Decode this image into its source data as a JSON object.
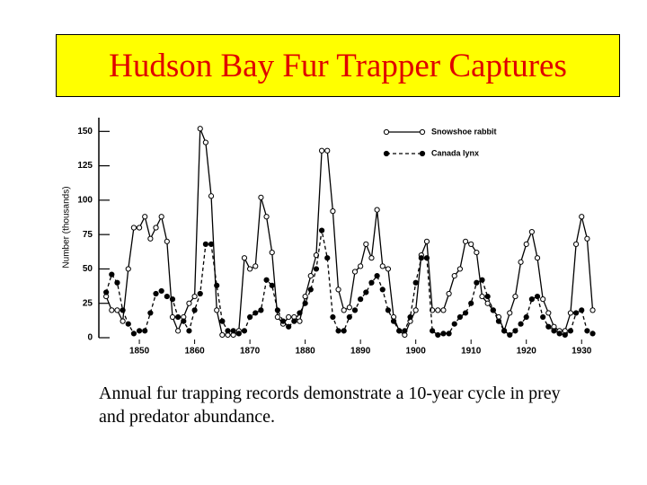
{
  "chart_data": {
    "type": "line",
    "title": "Hudson Bay Fur Trapper Captures",
    "caption": "Annual fur trapping records demonstrate a 10-year cycle in prey and predator abundance.",
    "y_label": "Number (thousands)",
    "x": [
      1844,
      1845,
      1846,
      1847,
      1848,
      1849,
      1850,
      1851,
      1852,
      1853,
      1854,
      1855,
      1856,
      1857,
      1858,
      1859,
      1860,
      1861,
      1862,
      1863,
      1864,
      1865,
      1866,
      1867,
      1868,
      1869,
      1870,
      1871,
      1872,
      1873,
      1874,
      1875,
      1876,
      1877,
      1878,
      1879,
      1880,
      1881,
      1882,
      1883,
      1884,
      1885,
      1886,
      1887,
      1888,
      1889,
      1890,
      1891,
      1892,
      1893,
      1894,
      1895,
      1896,
      1897,
      1898,
      1899,
      1900,
      1901,
      1902,
      1903,
      1904,
      1905,
      1906,
      1907,
      1908,
      1909,
      1910,
      1911,
      1912,
      1913,
      1914,
      1915,
      1916,
      1917,
      1918,
      1919,
      1920,
      1921,
      1922,
      1923,
      1924,
      1925,
      1926,
      1927,
      1928,
      1929,
      1930,
      1931,
      1932
    ],
    "series": [
      {
        "name": "Snowshoe rabbit",
        "color": "#000000",
        "line_style": "solid",
        "marker": "open",
        "values": [
          30,
          20,
          20,
          12,
          50,
          80,
          80,
          88,
          72,
          80,
          88,
          70,
          15,
          5,
          15,
          25,
          30,
          152,
          142,
          103,
          20,
          2,
          2,
          2,
          5,
          58,
          50,
          52,
          102,
          88,
          62,
          15,
          10,
          15,
          15,
          12,
          30,
          45,
          60,
          136,
          136,
          92,
          35,
          20,
          22,
          48,
          52,
          68,
          58,
          93,
          52,
          50,
          15,
          5,
          2,
          12,
          20,
          60,
          70,
          20,
          20,
          20,
          32,
          45,
          50,
          70,
          68,
          62,
          30,
          25,
          20,
          15,
          5,
          18,
          30,
          55,
          68,
          77,
          58,
          28,
          18,
          8,
          5,
          5,
          18,
          68,
          88,
          72,
          20
        ]
      },
      {
        "name": "Canada lynx",
        "color": "#000000",
        "line_style": "dashed",
        "marker": "filled",
        "values": [
          33,
          46,
          40,
          20,
          10,
          3,
          5,
          5,
          18,
          32,
          34,
          30,
          28,
          15,
          12,
          5,
          20,
          32,
          68,
          68,
          38,
          12,
          5,
          5,
          3,
          5,
          15,
          18,
          20,
          42,
          38,
          20,
          12,
          8,
          12,
          18,
          25,
          35,
          50,
          78,
          58,
          15,
          5,
          5,
          15,
          20,
          28,
          33,
          40,
          45,
          35,
          20,
          12,
          5,
          5,
          15,
          40,
          58,
          58,
          5,
          2,
          3,
          3,
          10,
          15,
          18,
          25,
          40,
          42,
          30,
          20,
          12,
          5,
          2,
          5,
          10,
          15,
          28,
          30,
          15,
          8,
          5,
          3,
          2,
          5,
          18,
          20,
          5,
          3
        ]
      }
    ],
    "xlim": [
      1843,
      1935
    ],
    "xticks": [
      1850,
      1860,
      1870,
      1880,
      1890,
      1900,
      1910,
      1920,
      1930
    ],
    "ylim": [
      0,
      160
    ],
    "yticks": [
      0,
      25,
      50,
      75,
      100,
      125,
      150
    ]
  }
}
